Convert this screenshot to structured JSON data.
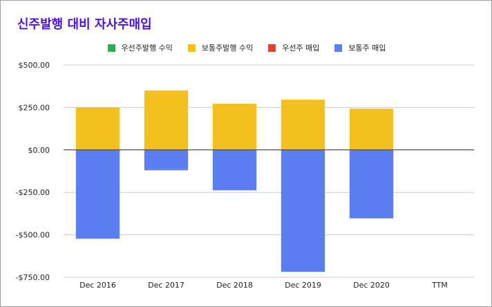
{
  "chart_data": {
    "type": "bar",
    "stacked": true,
    "title": "신주발행 대비 자사주매입",
    "xlabel": "",
    "ylabel": "",
    "categories": [
      "Dec 2016",
      "Dec 2017",
      "Dec 2018",
      "Dec 2019",
      "Dec 2020",
      "TTM"
    ],
    "ylim": [
      -750,
      500
    ],
    "yticks": [
      500,
      250,
      0,
      -250,
      -500,
      -750
    ],
    "ytick_labels": [
      "$500.00",
      "$250.00",
      "$0.00",
      "-$250.00",
      "-$500.00",
      "-$750.00"
    ],
    "grid": true,
    "legend_position": "top",
    "series": [
      {
        "name": "우선주발행 수익",
        "color": "#34a853",
        "values": [
          0,
          0,
          0,
          0,
          0,
          null
        ]
      },
      {
        "name": "보통주발행 수익",
        "color": "#f4c020",
        "values": [
          250,
          350,
          272,
          296,
          243,
          null
        ]
      },
      {
        "name": "우선주 매입",
        "color": "#db4437",
        "values": [
          0,
          0,
          0,
          0,
          0,
          null
        ]
      },
      {
        "name": "보통주 매입",
        "color": "#5b7ff2",
        "values": [
          -523,
          -120,
          -238,
          -718,
          -403,
          null
        ]
      }
    ]
  }
}
